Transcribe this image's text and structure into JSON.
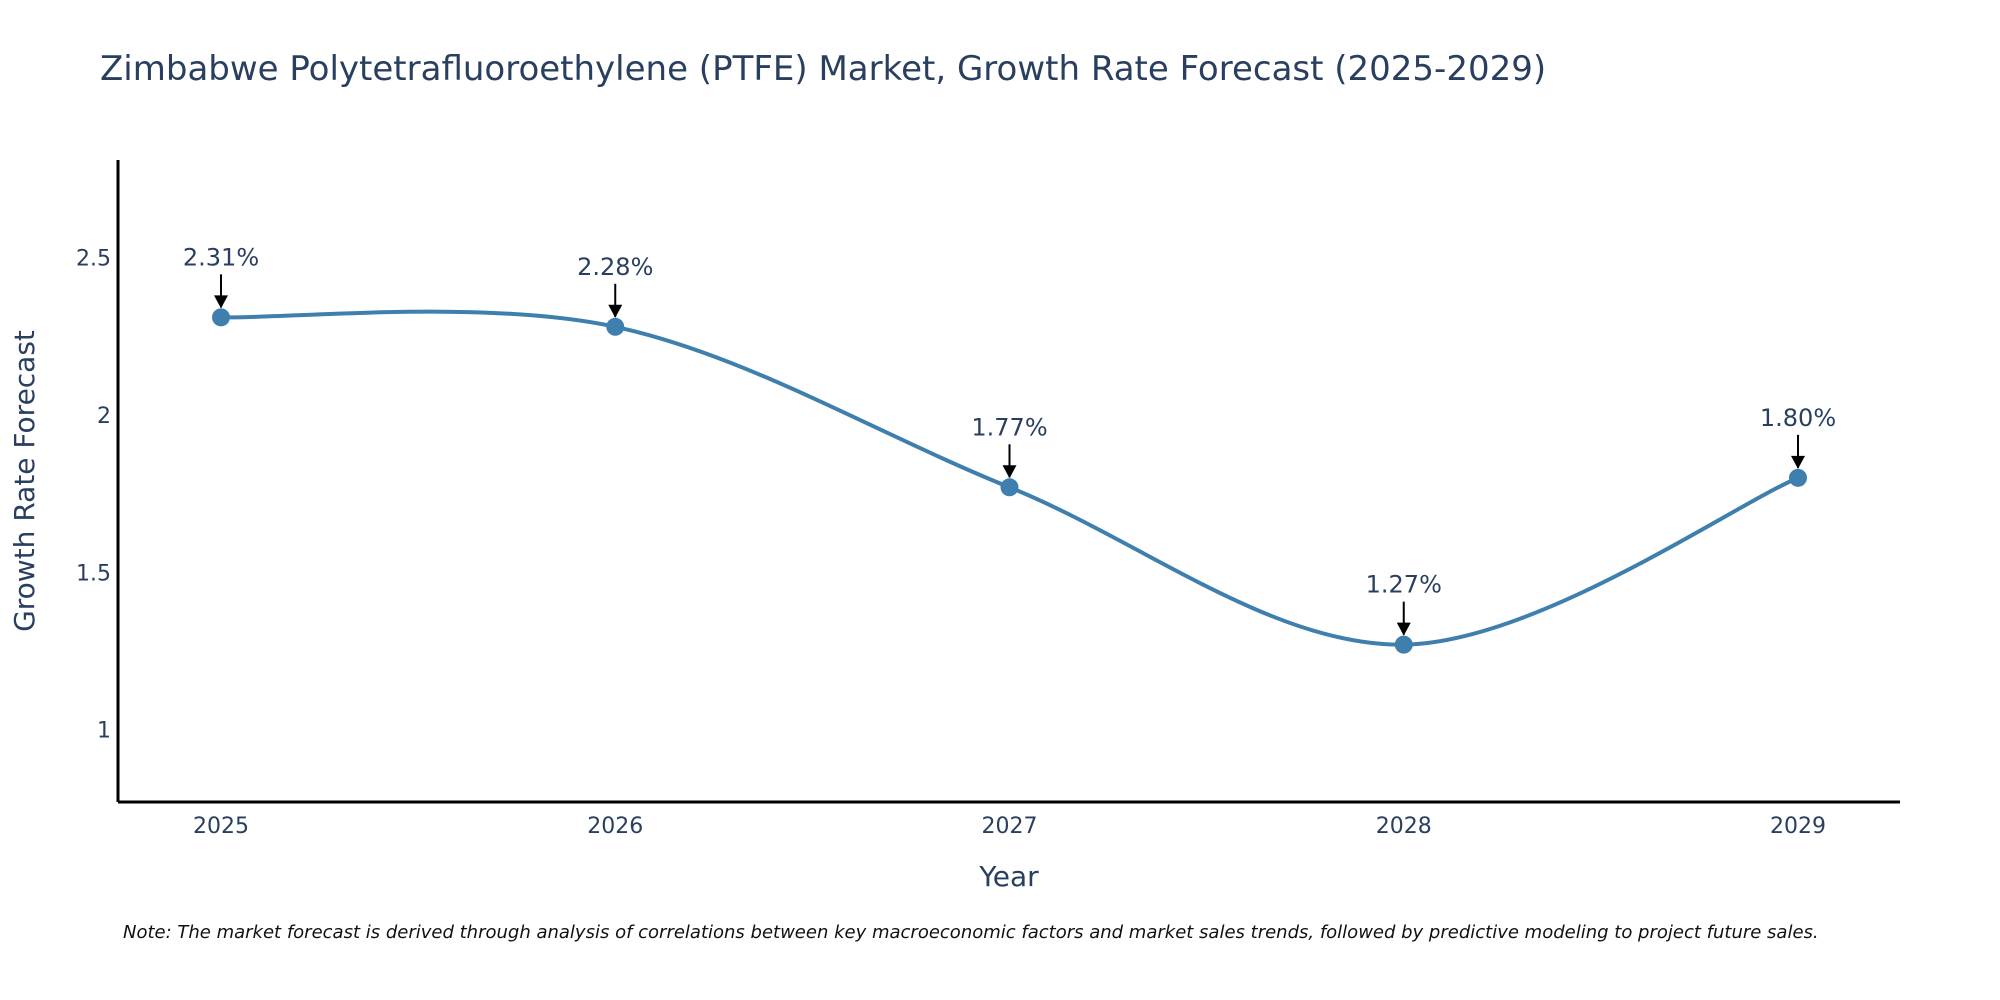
{
  "chart_data": {
    "type": "line",
    "title": "Zimbabwe Polytetrafluoroethylene (PTFE) Market, Growth Rate Forecast (2025-2029)",
    "xlabel": "Year",
    "ylabel": "Growth Rate Forecast",
    "categories": [
      "2025",
      "2026",
      "2027",
      "2028",
      "2029"
    ],
    "series": [
      {
        "name": "Growth Rate Forecast",
        "values": [
          2.31,
          2.28,
          1.77,
          1.27,
          1.8
        ],
        "labels": [
          "2.31%",
          "2.28%",
          "1.77%",
          "1.27%",
          "1.80%"
        ],
        "color": "#3f7fad"
      }
    ],
    "ylim": [
      0.77,
      2.81
    ],
    "yticks": [
      1,
      1.5,
      2,
      2.5
    ],
    "ytick_labels": [
      "1",
      "1.5",
      "2",
      "2.5"
    ],
    "grid": false,
    "legend": "none"
  },
  "note": "Note: The market forecast is derived through analysis of correlations between key macroeconomic factors and market sales trends, followed by predictive modeling to project future sales."
}
